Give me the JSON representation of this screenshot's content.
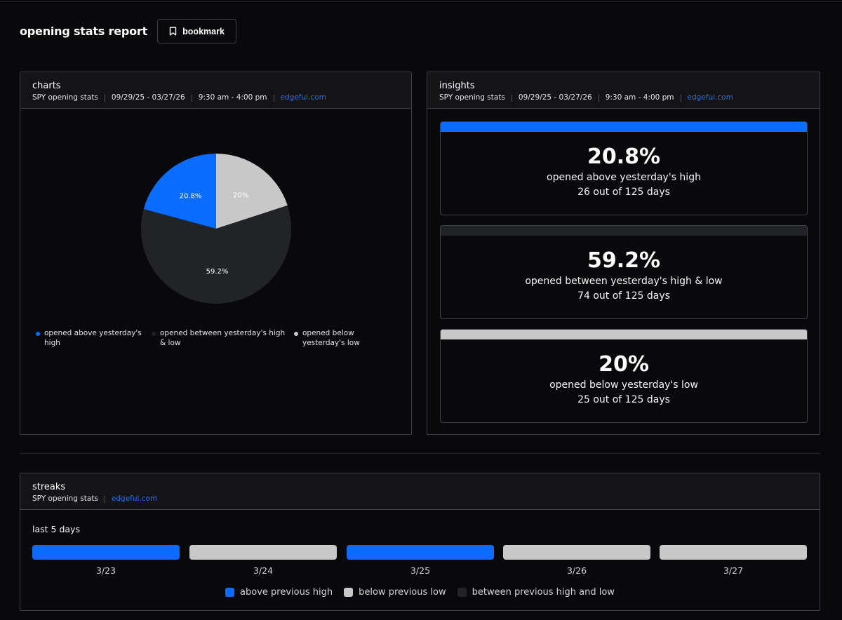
{
  "page": {
    "title": "opening stats report",
    "bookmark_label": "bookmark"
  },
  "colors": {
    "above": "#0a6cff",
    "between": "#222327",
    "below": "#c8c8c8",
    "link": "#1e6ff0"
  },
  "charts": {
    "title": "charts",
    "meta": {
      "ticker": "SPY opening stats",
      "dates": "09/29/25 - 03/27/26",
      "session": "9:30 am - 4:00 pm",
      "source": "edgeful.com"
    },
    "legend": [
      {
        "label_lines": [
          "opened above yesterday's",
          "high"
        ]
      },
      {
        "label_lines": [
          "opened between yesterday's high",
          "& low"
        ]
      },
      {
        "label_lines": [
          "opened below",
          "yesterday's low"
        ]
      }
    ]
  },
  "chart_data": {
    "type": "pie",
    "slices": [
      {
        "name": "opened above yesterday's high",
        "value": 20.8,
        "label": "20.8%",
        "color": "#0a6cff"
      },
      {
        "name": "opened below yesterday's low",
        "value": 20,
        "label": "20%",
        "color": "#c8c8c8"
      },
      {
        "name": "opened between yesterday's high & low",
        "value": 59.2,
        "label": "59.2%",
        "color": "#222327"
      }
    ]
  },
  "insights": {
    "title": "insights",
    "meta": {
      "ticker": "SPY opening stats",
      "dates": "09/29/25 - 03/27/26",
      "session": "9:30 am - 4:00 pm",
      "source": "edgeful.com"
    },
    "cards": [
      {
        "pct": "20.8%",
        "desc": "opened above yesterday's high",
        "count": "26 out of 125 days",
        "color": "#0a6cff"
      },
      {
        "pct": "59.2%",
        "desc": "opened between yesterday's high & low",
        "count": "74 out of 125 days",
        "color": "#222327"
      },
      {
        "pct": "20%",
        "desc": "opened below yesterday's low",
        "count": "25 out of 125 days",
        "color": "#c8c8c8"
      }
    ]
  },
  "streaks": {
    "title": "streaks",
    "meta": {
      "ticker": "SPY opening stats",
      "source": "edgeful.com"
    },
    "subtitle": "last 5 days",
    "days": [
      {
        "date": "3/23",
        "color": "#0a6cff"
      },
      {
        "date": "3/24",
        "color": "#c8c8c8"
      },
      {
        "date": "3/25",
        "color": "#0a6cff"
      },
      {
        "date": "3/26",
        "color": "#c8c8c8"
      },
      {
        "date": "3/27",
        "color": "#c8c8c8"
      }
    ],
    "legend": [
      {
        "label": "above previous high",
        "color": "#0a6cff"
      },
      {
        "label": "below previous low",
        "color": "#c8c8c8"
      },
      {
        "label": "between previous high and low",
        "color": "#222327"
      }
    ]
  }
}
